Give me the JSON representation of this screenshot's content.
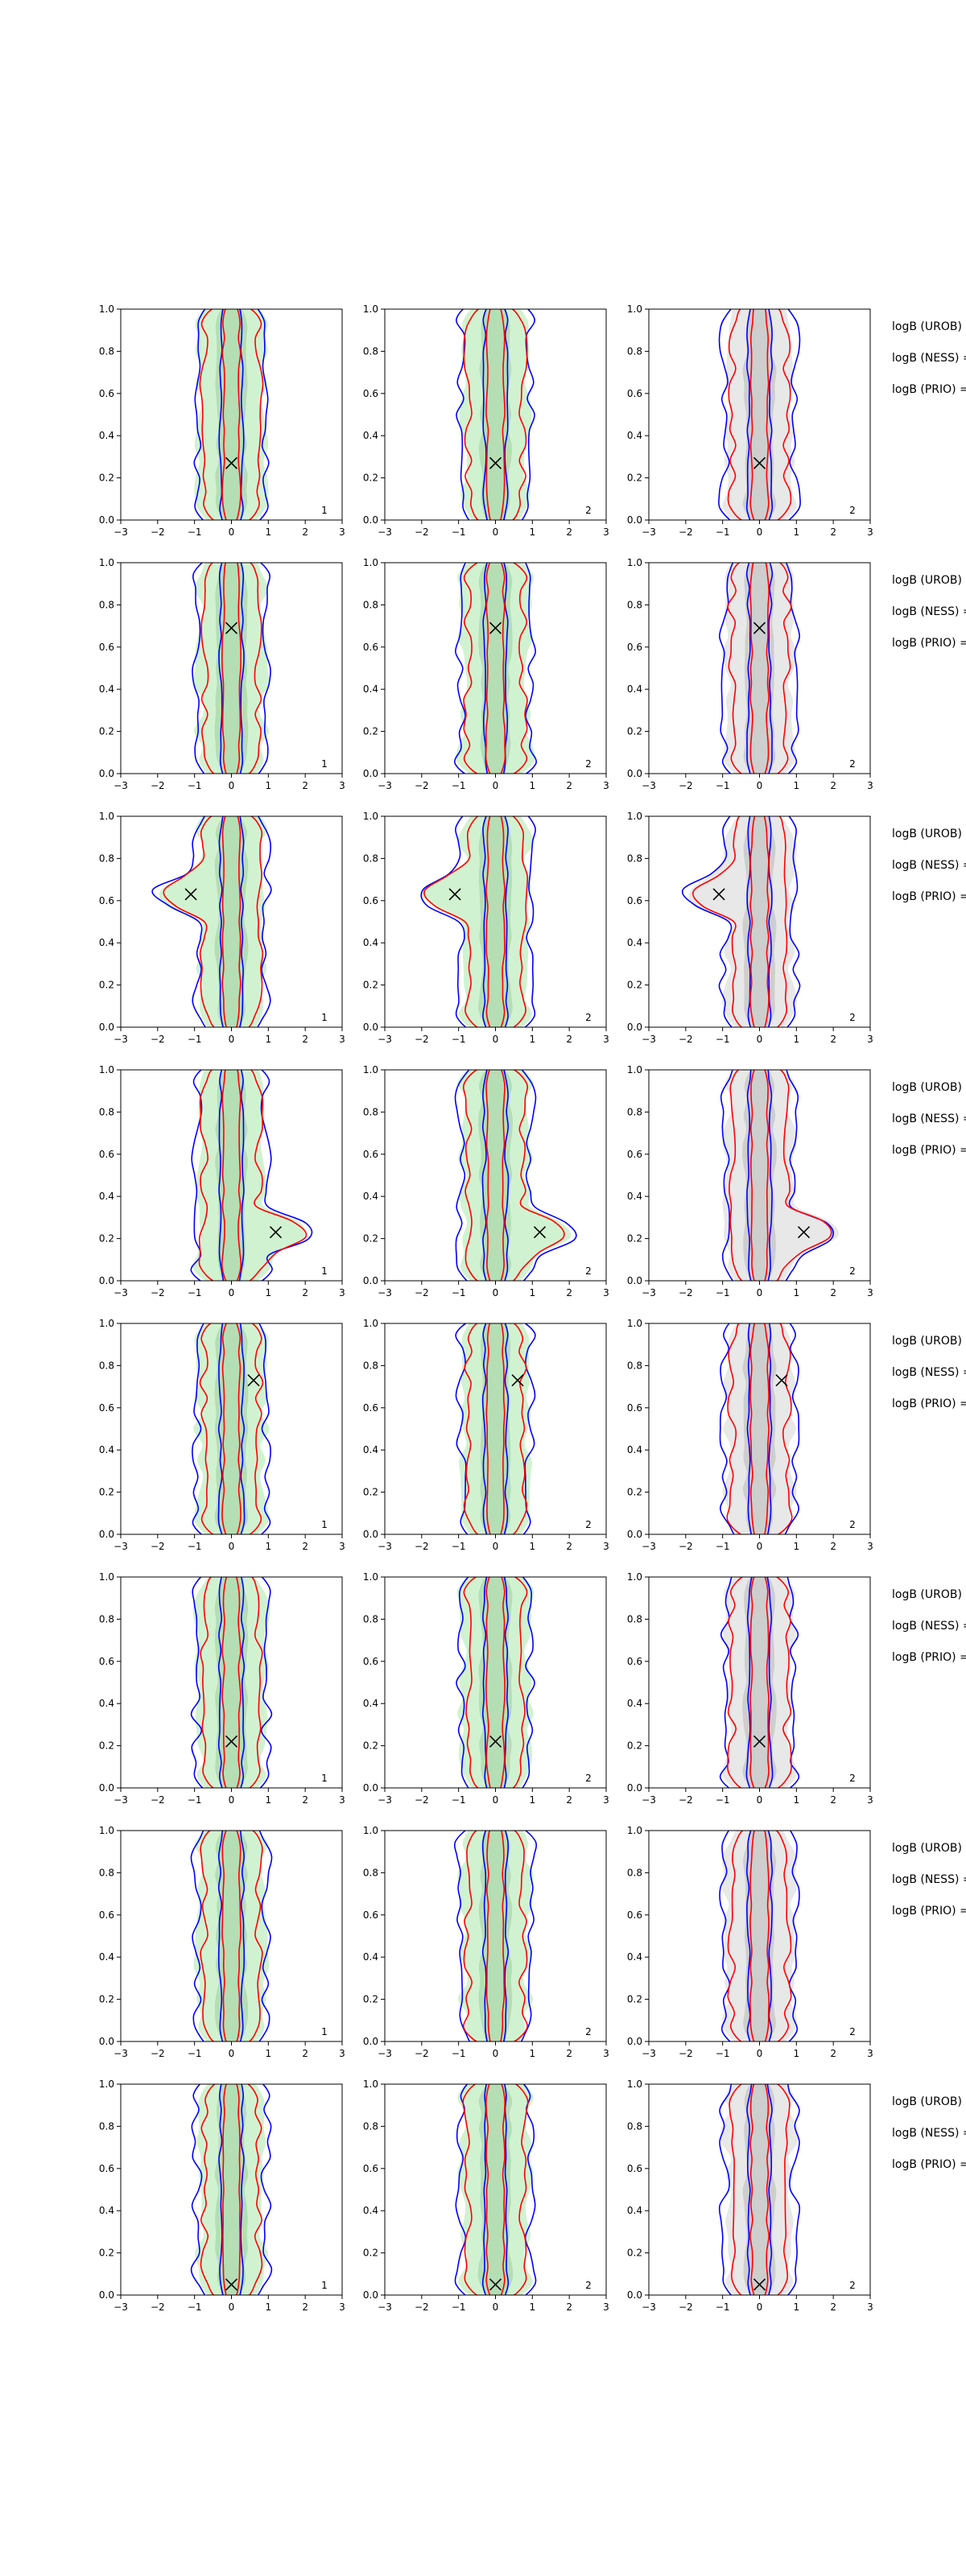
{
  "figure": {
    "rows": [
      {
        "panels": [
          {
            "marker": {
              "x": 0.0,
              "y": 0.27
            },
            "count_label": "1"
          },
          {
            "marker": {
              "x": 0.0,
              "y": 0.27
            },
            "count_label": "2"
          },
          {
            "marker": {
              "x": 0.0,
              "y": 0.27
            },
            "count_label": "2"
          }
        ],
        "stats": [
          "logB (UROB) =",
          "logB (NESS) =",
          "logB (PRIO) ="
        ]
      },
      {
        "panels": [
          {
            "marker": {
              "x": 0.0,
              "y": 0.69
            },
            "count_label": "1"
          },
          {
            "marker": {
              "x": 0.0,
              "y": 0.69
            },
            "count_label": "2"
          },
          {
            "marker": {
              "x": 0.0,
              "y": 0.69
            },
            "count_label": "2"
          }
        ],
        "stats": [
          "logB (UROB) =",
          "logB (NESS) =",
          "logB (PRIO) ="
        ]
      },
      {
        "panels": [
          {
            "marker": {
              "x": -1.1,
              "y": 0.63
            },
            "count_label": "1"
          },
          {
            "marker": {
              "x": -1.1,
              "y": 0.63
            },
            "count_label": "2"
          },
          {
            "marker": {
              "x": -1.1,
              "y": 0.63
            },
            "count_label": "2"
          }
        ],
        "stats": [
          "logB (UROB) =",
          "logB (NESS) =",
          "logB (PRIO) ="
        ]
      },
      {
        "panels": [
          {
            "marker": {
              "x": 1.2,
              "y": 0.23
            },
            "count_label": "1"
          },
          {
            "marker": {
              "x": 1.2,
              "y": 0.23
            },
            "count_label": "2"
          },
          {
            "marker": {
              "x": 1.2,
              "y": 0.23
            },
            "count_label": "2"
          }
        ],
        "stats": [
          "logB (UROB) =",
          "logB (NESS) =",
          "logB (PRIO) ="
        ]
      },
      {
        "panels": [
          {
            "marker": {
              "x": 0.6,
              "y": 0.73
            },
            "count_label": "1"
          },
          {
            "marker": {
              "x": 0.6,
              "y": 0.73
            },
            "count_label": "2"
          },
          {
            "marker": {
              "x": 0.6,
              "y": 0.73
            },
            "count_label": "2"
          }
        ],
        "stats": [
          "logB (UROB) =",
          "logB (NESS) =",
          "logB (PRIO) ="
        ]
      },
      {
        "panels": [
          {
            "marker": {
              "x": 0.0,
              "y": 0.22
            },
            "count_label": "1"
          },
          {
            "marker": {
              "x": 0.0,
              "y": 0.22
            },
            "count_label": "2"
          },
          {
            "marker": {
              "x": 0.0,
              "y": 0.22
            },
            "count_label": "2"
          }
        ],
        "stats": [
          "logB (UROB) =",
          "logB (NESS) =",
          "logB (PRIO) ="
        ]
      },
      {
        "panels": [
          {
            "marker": null,
            "count_label": "1"
          },
          {
            "marker": null,
            "count_label": "2"
          },
          {
            "marker": null,
            "count_label": "2"
          }
        ],
        "stats": [
          "logB (UROB) =",
          "logB (NESS) =",
          "logB (PRIO) ="
        ]
      },
      {
        "panels": [
          {
            "marker": {
              "x": 0.0,
              "y": 0.05
            },
            "count_label": "1"
          },
          {
            "marker": {
              "x": 0.0,
              "y": 0.05
            },
            "count_label": "2"
          },
          {
            "marker": {
              "x": 0.0,
              "y": 0.05
            },
            "count_label": "2"
          }
        ],
        "stats": [
          "logB (UROB) =",
          "logB (NESS) =",
          "logB (PRIO) ="
        ]
      }
    ]
  },
  "chart_data": {
    "type": "contour",
    "grid": false,
    "xlim": [
      -3,
      3
    ],
    "ylim": [
      0,
      1
    ],
    "xticks": [
      -3,
      -2,
      -1,
      0,
      1,
      2,
      3
    ],
    "yticks": [
      0.0,
      0.2,
      0.4,
      0.6,
      0.8,
      1.0
    ],
    "xtick_labels": [
      "−3",
      "−2",
      "−1",
      "0",
      "1",
      "2",
      "3"
    ],
    "ytick_labels": [
      "0.0",
      "0.2",
      "0.4",
      "0.6",
      "0.8",
      "1.0"
    ],
    "layout": {
      "rows": 8,
      "cols": 3
    },
    "styles": {
      "filled_column_1": {
        "fill": "#b8ebb8",
        "outer_opacity": 0.65,
        "inner_fill": "#9fce9f"
      },
      "filled_column_2": {
        "fill": "#b8ebb8",
        "outer_opacity": 0.65,
        "inner_fill": "#9fce9f"
      },
      "filled_column_3": {
        "fill": "#d8d8d8",
        "outer_opacity": 0.6,
        "inner_fill": "#b8b8b8"
      },
      "blue_contour": "#0000ff",
      "red_contour": "#ff0000",
      "marker": "#000000"
    }
  }
}
